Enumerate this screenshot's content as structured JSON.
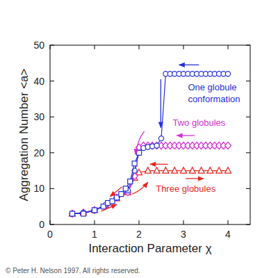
{
  "chart_data": {
    "type": "line",
    "x_label": "Interaction Parameter χ",
    "y_label": "Aggregation Number <a>",
    "xlim": [
      0,
      4.5
    ],
    "xticks": [
      0,
      1,
      2,
      3,
      4
    ],
    "ylim": [
      0,
      50
    ],
    "yticks": [
      0,
      10,
      20,
      30,
      40,
      50
    ],
    "grid": false,
    "series": [
      {
        "name": "One globule conformation",
        "color": "#2430d8",
        "marker": "circle",
        "line_style": "solid",
        "x": [
          0.5,
          0.75,
          1.0,
          1.25,
          1.5,
          1.75,
          1.9,
          2.0,
          2.1,
          2.2,
          2.3,
          2.4,
          2.5,
          2.6,
          2.7,
          2.8,
          2.9,
          3.0,
          3.1,
          3.2,
          3.3,
          3.4,
          3.5,
          3.6,
          3.7,
          3.8,
          3.9,
          4.0
        ],
        "values": [
          3,
          3.3,
          4,
          5.5,
          7.5,
          9.5,
          15,
          20,
          21.3,
          21.6,
          21.8,
          22,
          24,
          42,
          42,
          42,
          42,
          42,
          42,
          42,
          42,
          42,
          42,
          42,
          42,
          42,
          42,
          42
        ]
      },
      {
        "color": "#2430d8",
        "marker": "square",
        "line_style": "solid",
        "x": [
          0.5,
          0.75,
          1.0,
          1.2,
          1.3,
          1.4,
          1.5,
          1.6,
          1.7,
          1.8,
          1.9,
          2.0
        ],
        "values": [
          3,
          3,
          4,
          5,
          6,
          6.5,
          7.5,
          8.5,
          10,
          12,
          17,
          20
        ]
      },
      {
        "name": "Two globules",
        "color": "#d22fd2",
        "marker": "diamond",
        "line_style": "solid",
        "x": [
          0.5,
          0.75,
          1.0,
          1.25,
          1.5,
          1.75,
          1.9,
          2.0,
          2.1,
          2.2,
          2.3,
          2.4,
          2.5,
          2.6,
          2.7,
          2.8,
          2.9,
          3.0,
          3.1,
          3.2,
          3.3,
          3.4,
          3.5,
          3.6,
          3.7,
          3.8,
          3.9,
          4.0
        ],
        "values": [
          3,
          3.3,
          4,
          5.3,
          7.5,
          9,
          13.5,
          21.5,
          22,
          22,
          22,
          22,
          22,
          22,
          22,
          22,
          22,
          22,
          22,
          22,
          22,
          22,
          22,
          22,
          22,
          22,
          22,
          22
        ]
      },
      {
        "name": "Three globules",
        "color": "#e8251f",
        "marker": "triangle",
        "line_style": "solid",
        "x": [
          0.5,
          0.75,
          1.0,
          1.25,
          1.5,
          1.75,
          1.9,
          2.0,
          2.2,
          2.4,
          2.6,
          2.8,
          3.0,
          3.2,
          3.4,
          3.6,
          3.8,
          4.0
        ],
        "values": [
          3,
          3.3,
          4,
          5.3,
          7.3,
          9,
          13,
          14.5,
          15,
          15,
          15,
          15,
          15,
          15,
          15,
          15,
          15,
          15
        ]
      }
    ],
    "annotations": [
      "© Peter H. Nelson 1997. All rights reserved."
    ]
  }
}
